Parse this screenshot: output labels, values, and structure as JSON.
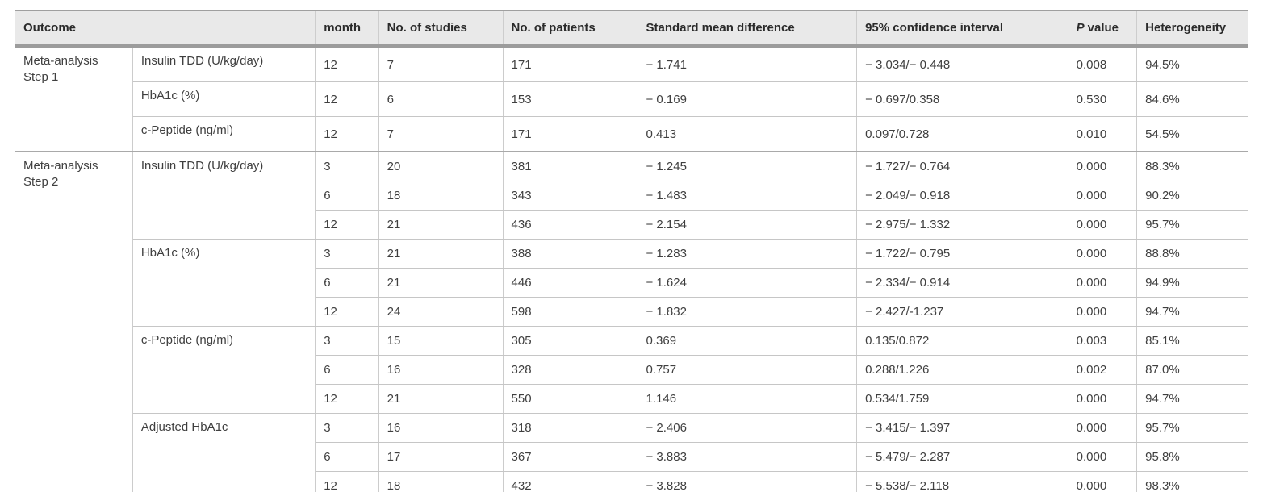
{
  "table": {
    "headers": {
      "outcome": "Outcome",
      "month": "month",
      "studies": "No. of studies",
      "patients": "No. of patients",
      "smd": "Standard mean difference",
      "ci": "95% confidence interval",
      "p_italic": "P",
      "p_suffix": "value",
      "heterogeneity": "Heterogeneity"
    },
    "groups": [
      {
        "label": "Meta-analysis Step 1",
        "outcomes": [
          {
            "name": "Insulin TDD (U/kg/day)",
            "rows": [
              {
                "month": "12",
                "studies": "7",
                "patients": "171",
                "smd": "− 1.741",
                "ci": "− 3.034/− 0.448",
                "p": "0.008",
                "het": "94.5%"
              }
            ]
          },
          {
            "name": "HbA1c (%)",
            "rows": [
              {
                "month": "12",
                "studies": "6",
                "patients": "153",
                "smd": "− 0.169",
                "ci": "− 0.697/0.358",
                "p": "0.530",
                "het": "84.6%"
              }
            ]
          },
          {
            "name": "c-Peptide (ng/ml)",
            "rows": [
              {
                "month": "12",
                "studies": "7",
                "patients": "171",
                "smd": "0.413",
                "ci": "0.097/0.728",
                "p": "0.010",
                "het": "54.5%"
              }
            ]
          }
        ]
      },
      {
        "label": "Meta-analysis Step 2",
        "outcomes": [
          {
            "name": "Insulin TDD (U/kg/day)",
            "rows": [
              {
                "month": "3",
                "studies": "20",
                "patients": "381",
                "smd": "− 1.245",
                "ci": "− 1.727/− 0.764",
                "p": "0.000",
                "het": "88.3%"
              },
              {
                "month": "6",
                "studies": "18",
                "patients": "343",
                "smd": "− 1.483",
                "ci": "− 2.049/− 0.918",
                "p": "0.000",
                "het": "90.2%"
              },
              {
                "month": "12",
                "studies": "21",
                "patients": "436",
                "smd": "− 2.154",
                "ci": "− 2.975/− 1.332",
                "p": "0.000",
                "het": "95.7%"
              }
            ]
          },
          {
            "name": "HbA1c (%)",
            "rows": [
              {
                "month": "3",
                "studies": "21",
                "patients": "388",
                "smd": "− 1.283",
                "ci": "− 1.722/− 0.795",
                "p": "0.000",
                "het": "88.8%"
              },
              {
                "month": "6",
                "studies": "21",
                "patients": "446",
                "smd": "− 1.624",
                "ci": "− 2.334/− 0.914",
                "p": "0.000",
                "het": "94.9%"
              },
              {
                "month": "12",
                "studies": "24",
                "patients": "598",
                "smd": "− 1.832",
                "ci": "− 2.427/-1.237",
                "p": "0.000",
                "het": "94.7%"
              }
            ]
          },
          {
            "name": "c-Peptide (ng/ml)",
            "rows": [
              {
                "month": "3",
                "studies": "15",
                "patients": "305",
                "smd": "0.369",
                "ci": "0.135/0.872",
                "p": "0.003",
                "het": "85.1%"
              },
              {
                "month": "6",
                "studies": "16",
                "patients": "328",
                "smd": "0.757",
                "ci": "0.288/1.226",
                "p": "0.002",
                "het": "87.0%"
              },
              {
                "month": "12",
                "studies": "21",
                "patients": "550",
                "smd": "1.146",
                "ci": "0.534/1.759",
                "p": "0.000",
                "het": "94.7%"
              }
            ]
          },
          {
            "name": "Adjusted HbA1c",
            "rows": [
              {
                "month": "3",
                "studies": "16",
                "patients": "318",
                "smd": "− 2.406",
                "ci": "− 3.415/− 1.397",
                "p": "0.000",
                "het": "95.7%"
              },
              {
                "month": "6",
                "studies": "17",
                "patients": "367",
                "smd": "− 3.883",
                "ci": "− 5.479/− 2.287",
                "p": "0.000",
                "het": "95.8%"
              },
              {
                "month": "12",
                "studies": "18",
                "patients": "432",
                "smd": "− 3.828",
                "ci": "− 5.538/− 2.118",
                "p": "0.000",
                "het": "98.3%"
              }
            ]
          }
        ]
      }
    ]
  }
}
